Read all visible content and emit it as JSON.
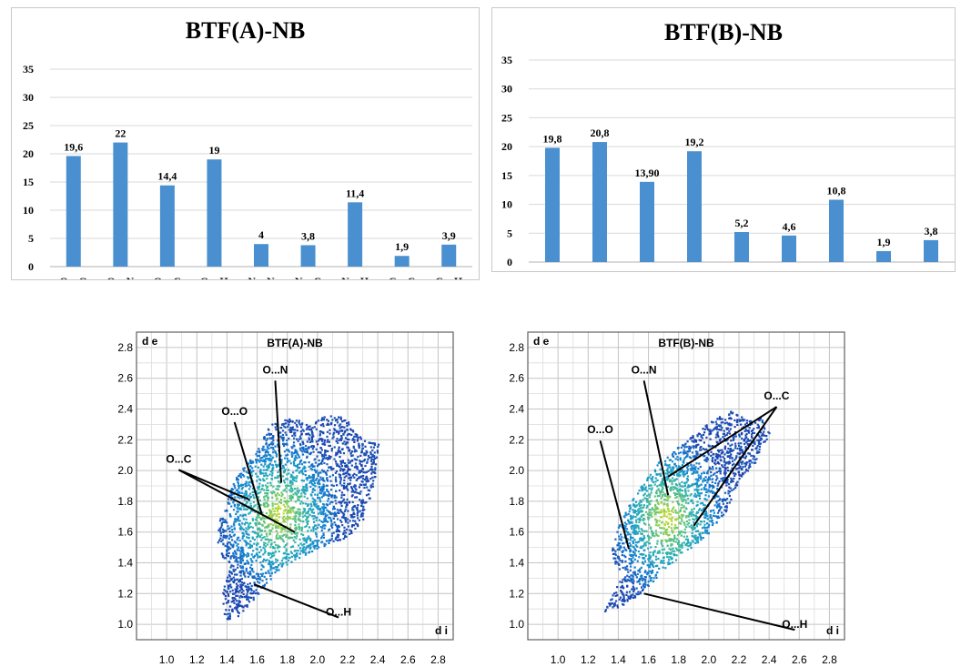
{
  "chart_data": [
    {
      "type": "bar",
      "title": "BTF(A)-NB",
      "categories": [
        "O…O",
        "O…N",
        "O…C",
        "O…H",
        "N…N",
        "N…C",
        "N…H",
        "C…C",
        "C…H"
      ],
      "values": [
        19.6,
        22,
        14.4,
        19,
        4,
        3.8,
        11.4,
        1.9,
        3.9
      ],
      "value_labels": [
        "19,6",
        "22",
        "14,4",
        "19",
        "4",
        "3,8",
        "11,4",
        "1,9",
        "3,9"
      ],
      "yticks": [
        "0",
        "5",
        "10",
        "15",
        "20",
        "25",
        "30",
        "35"
      ],
      "ylim": [
        0,
        35
      ],
      "grid": true,
      "color": "#4a90d0"
    },
    {
      "type": "bar",
      "title": "BTF(B)-NB",
      "categories": [
        "O…O",
        "O…N",
        "O…C",
        "O…H",
        "N…N",
        "N…C",
        "N…H",
        "C…C",
        "C…H"
      ],
      "values": [
        19.8,
        20.8,
        13.9,
        19.2,
        5.2,
        4.6,
        10.8,
        1.9,
        3.8
      ],
      "value_labels": [
        "19,8",
        "20,8",
        "13,90",
        "19,2",
        "5,2",
        "4,6",
        "10,8",
        "1,9",
        "3,8"
      ],
      "yticks": [
        "0",
        "5",
        "10",
        "15",
        "20",
        "25",
        "30",
        "35"
      ],
      "ylim": [
        0,
        35
      ],
      "grid": true,
      "color": "#4a90d0"
    },
    {
      "type": "scatter",
      "title": "BTF(A)-NB",
      "xlabel": "d i",
      "ylabel": "d e",
      "xticks": [
        "1.0",
        "1.2",
        "1.4",
        "1.6",
        "1.8",
        "2.0",
        "2.2",
        "2.4",
        "2.6",
        "2.8"
      ],
      "yticks": [
        "1.0",
        "1.2",
        "1.4",
        "1.6",
        "1.8",
        "2.0",
        "2.2",
        "2.4",
        "2.6",
        "2.8"
      ],
      "xlim": [
        0.8,
        2.9
      ],
      "ylim": [
        0.9,
        2.9
      ],
      "grid": true,
      "annotations": [
        {
          "label": "O...N",
          "text_at": [
            1.72,
            2.62
          ],
          "points_to": [
            [
              1.76,
              1.92
            ]
          ]
        },
        {
          "label": "O...O",
          "text_at": [
            1.45,
            2.35
          ],
          "points_to": [
            [
              1.63,
              1.72
            ]
          ]
        },
        {
          "label": "O...C",
          "text_at": [
            1.08,
            2.04
          ],
          "points_to": [
            [
              1.55,
              1.81
            ],
            [
              1.85,
              1.6
            ]
          ]
        },
        {
          "label": "O...H",
          "text_at": [
            2.14,
            1.08
          ],
          "points_to": [
            [
              1.58,
              1.26
            ]
          ]
        }
      ]
    },
    {
      "type": "scatter",
      "title": "BTF(B)-NB",
      "xlabel": "d i",
      "ylabel": "d e",
      "xticks": [
        "1.0",
        "1.2",
        "1.4",
        "1.6",
        "1.8",
        "2.0",
        "2.2",
        "2.4",
        "2.6",
        "2.8"
      ],
      "yticks": [
        "1.0",
        "1.2",
        "1.4",
        "1.6",
        "1.8",
        "2.0",
        "2.2",
        "2.4",
        "2.6",
        "2.8"
      ],
      "xlim": [
        0.8,
        2.9
      ],
      "ylim": [
        0.9,
        2.9
      ],
      "grid": true,
      "annotations": [
        {
          "label": "O...N",
          "text_at": [
            1.57,
            2.62
          ],
          "points_to": [
            [
              1.73,
              1.84
            ]
          ]
        },
        {
          "label": "O...O",
          "text_at": [
            1.28,
            2.23
          ],
          "points_to": [
            [
              1.47,
              1.49
            ]
          ]
        },
        {
          "label": "O...C",
          "text_at": [
            2.45,
            2.45
          ],
          "points_to": [
            [
              1.73,
              1.96
            ],
            [
              1.9,
              1.64
            ]
          ]
        },
        {
          "label": "O...H",
          "text_at": [
            2.57,
            1.0
          ],
          "points_to": [
            [
              1.57,
              1.2
            ]
          ]
        }
      ]
    }
  ]
}
